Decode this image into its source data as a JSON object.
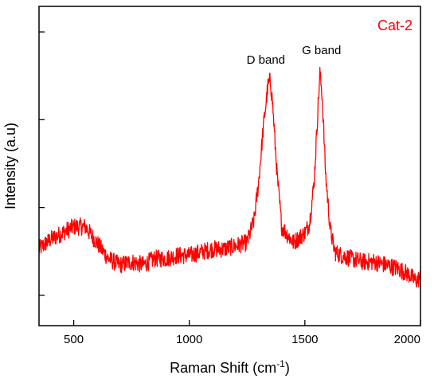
{
  "chart_data": {
    "type": "line",
    "xlabel": "Raman Shift (cm",
    "xlabel_sup": "-1",
    "xlabel_close": ")",
    "ylabel": "Intensity (a.u)",
    "xlim": [
      350,
      2000
    ],
    "ylim": [
      0,
      1
    ],
    "x_ticks": [
      500,
      1000,
      1500,
      2000
    ],
    "x_tick_labels": [
      "500",
      "1000",
      "1500",
      "2000"
    ],
    "y_tick_labels_shown": false,
    "grid": false,
    "legend": {
      "text": "Cat-2",
      "placement": "top-right",
      "color": "#ff0000"
    },
    "annotations": [
      {
        "text": "D band",
        "x": 1345,
        "y": 0.82
      },
      {
        "text": "G band",
        "x": 1565,
        "y": 0.85
      }
    ],
    "series": [
      {
        "name": "Cat-2",
        "color": "#ff0000",
        "x": [
          350,
          400,
          450,
          500,
          550,
          600,
          650,
          700,
          750,
          800,
          850,
          900,
          950,
          1000,
          1050,
          1100,
          1150,
          1200,
          1250,
          1280,
          1300,
          1320,
          1340,
          1350,
          1360,
          1380,
          1400,
          1450,
          1500,
          1520,
          1540,
          1555,
          1565,
          1575,
          1590,
          1610,
          1630,
          1660,
          1700,
          1750,
          1800,
          1850,
          1900,
          1950,
          1980,
          2000
        ],
        "y": [
          0.24,
          0.27,
          0.29,
          0.31,
          0.31,
          0.26,
          0.21,
          0.19,
          0.2,
          0.19,
          0.21,
          0.21,
          0.22,
          0.22,
          0.23,
          0.24,
          0.24,
          0.25,
          0.26,
          0.33,
          0.45,
          0.62,
          0.75,
          0.77,
          0.7,
          0.47,
          0.31,
          0.26,
          0.29,
          0.32,
          0.45,
          0.66,
          0.79,
          0.72,
          0.47,
          0.3,
          0.23,
          0.22,
          0.21,
          0.2,
          0.2,
          0.19,
          0.18,
          0.16,
          0.14,
          0.15
        ]
      }
    ]
  }
}
